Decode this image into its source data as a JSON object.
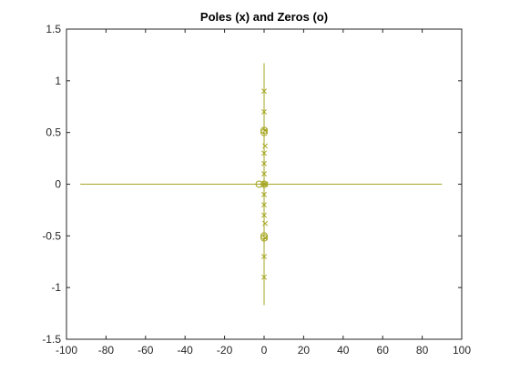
{
  "chart_data": {
    "type": "scatter",
    "title": "Poles (x) and Zeros (o)",
    "xlabel": "",
    "ylabel": "",
    "xlim": [
      -100,
      100
    ],
    "ylim": [
      -1.5,
      1.5
    ],
    "grid": false,
    "legend": "none",
    "x_ticks": [
      -100,
      -80,
      -60,
      -40,
      -20,
      0,
      20,
      40,
      60,
      80,
      100
    ],
    "y_ticks": [
      -1.5,
      -1,
      -0.5,
      0,
      0.5,
      1,
      1.5
    ],
    "x_tick_labels": [
      "-100",
      "-80",
      "-60",
      "-40",
      "-20",
      "0",
      "20",
      "40",
      "60",
      "80",
      "100"
    ],
    "y_tick_labels": [
      "-1.5",
      "-1",
      "-0.5",
      "0",
      "0.5",
      "1",
      "1.5"
    ],
    "color": "#a5a520",
    "axes_color": "#262626",
    "series": [
      {
        "marker": "line",
        "points": [
          {
            "x": -93,
            "y": 0
          },
          {
            "x": 90,
            "y": 0
          }
        ]
      },
      {
        "marker": "line",
        "points": [
          {
            "x": 0,
            "y": 1.17
          },
          {
            "x": 0,
            "y": -1.17
          }
        ]
      },
      {
        "marker": "o",
        "points": [
          {
            "x": 0,
            "y": 0.5
          },
          {
            "x": 0,
            "y": -0.5
          },
          {
            "x": -2.5,
            "y": 0
          },
          {
            "x": 0,
            "y": 0
          },
          {
            "x": 0,
            "y": 0.52
          },
          {
            "x": 0,
            "y": -0.52
          }
        ]
      },
      {
        "marker": "x",
        "points": [
          {
            "x": 0.5,
            "y": 0.37
          },
          {
            "x": 0.5,
            "y": -0.38
          },
          {
            "x": 0.5,
            "y": 0.52
          },
          {
            "x": 0.5,
            "y": -0.52
          },
          {
            "x": 0,
            "y": 0
          },
          {
            "x": 0.8,
            "y": 0
          },
          {
            "x": 0,
            "y": 0.9
          },
          {
            "x": 0,
            "y": 0.7
          },
          {
            "x": 0,
            "y": 0.3
          },
          {
            "x": 0,
            "y": 0.2
          },
          {
            "x": 0,
            "y": 0.1
          },
          {
            "x": 0,
            "y": -0.1
          },
          {
            "x": 0,
            "y": -0.2
          },
          {
            "x": 0,
            "y": -0.3
          },
          {
            "x": 0,
            "y": -0.7
          },
          {
            "x": 0,
            "y": -0.9
          }
        ]
      }
    ]
  }
}
